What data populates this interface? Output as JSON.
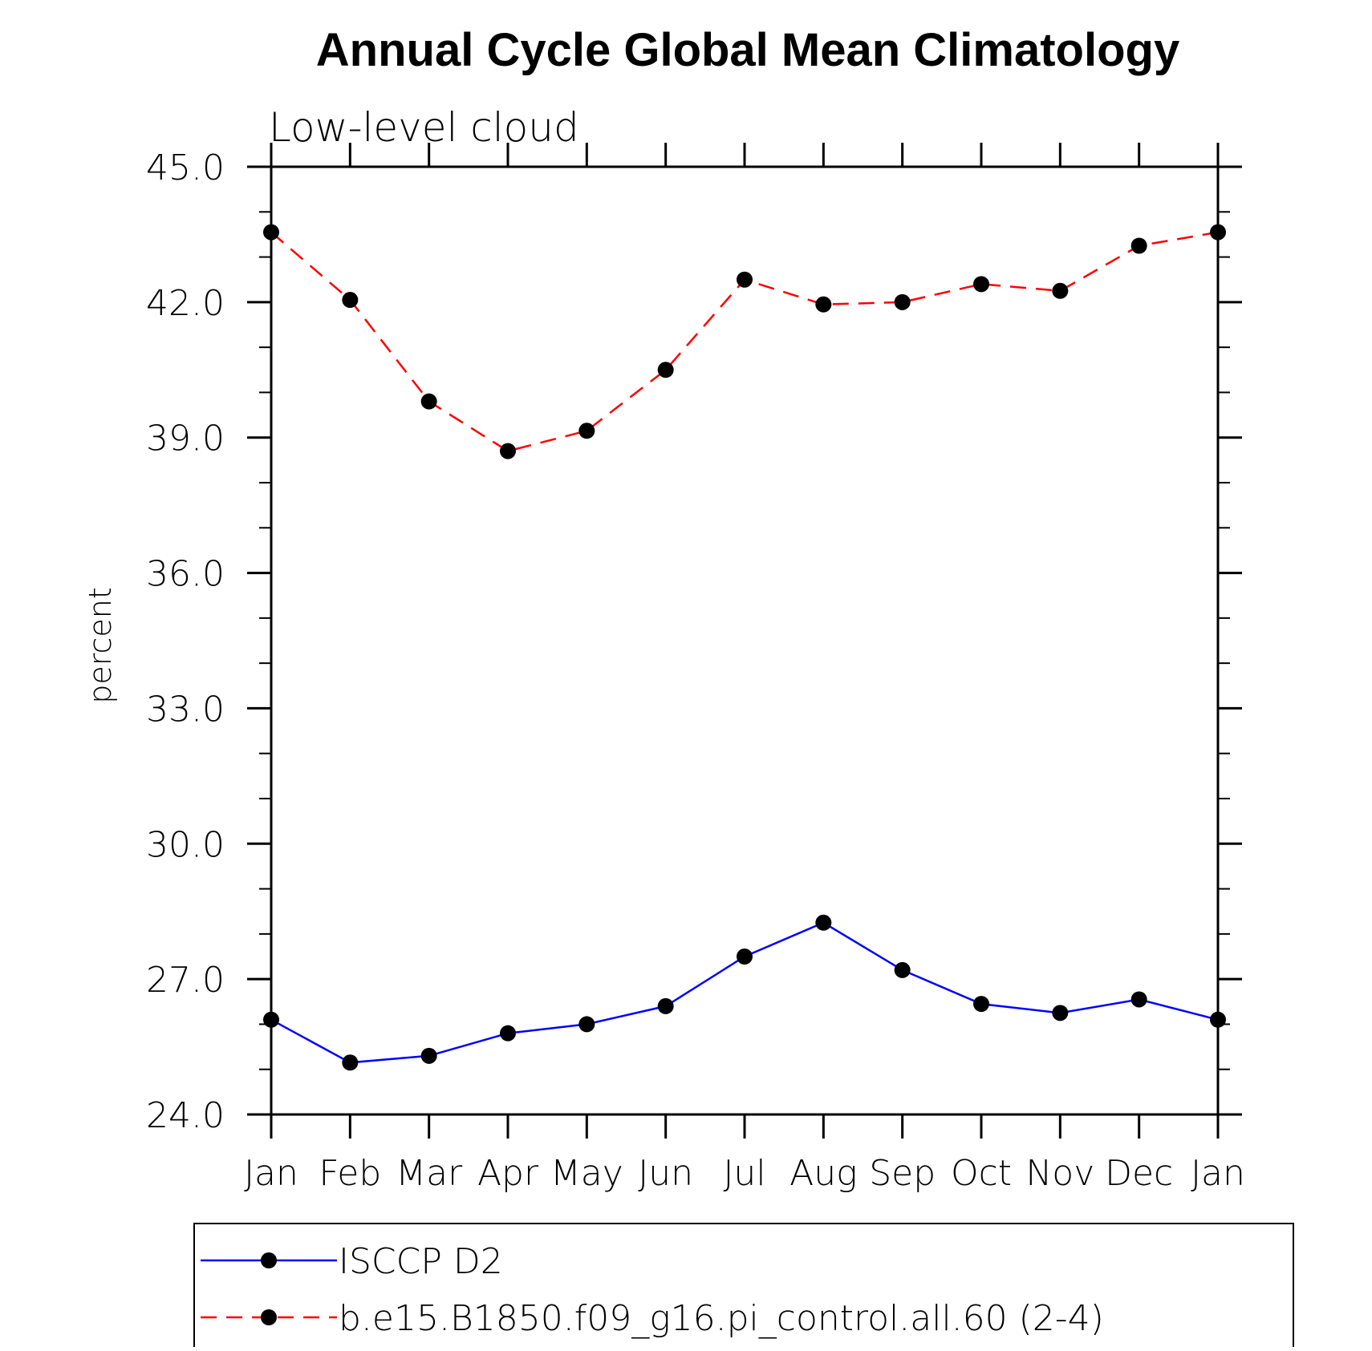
{
  "chart_data": {
    "type": "line",
    "title": "Annual Cycle Global Mean Climatology",
    "subtitle": "Low-level cloud",
    "xlabel": "",
    "ylabel": "percent",
    "categories": [
      "Jan",
      "Feb",
      "Mar",
      "Apr",
      "May",
      "Jun",
      "Jul",
      "Aug",
      "Sep",
      "Oct",
      "Nov",
      "Dec",
      "Jan"
    ],
    "ylim": [
      24.0,
      45.0
    ],
    "yticks": [
      "24.0",
      "27.0",
      "30.0",
      "33.0",
      "36.0",
      "39.0",
      "42.0",
      "45.0"
    ],
    "grid": false,
    "legend_position": "bottom",
    "series": [
      {
        "name": "ISCCP D2",
        "color": "#0000ff",
        "line_style": "solid",
        "marker": "filled-circle",
        "values": [
          26.1,
          25.15,
          25.3,
          25.8,
          26.0,
          26.4,
          27.5,
          28.25,
          27.2,
          26.45,
          26.25,
          26.55,
          26.1
        ]
      },
      {
        "name": "b.e15.B1850.f09_g16.pi_control.all.60 (2-4)",
        "color": "#ff0000",
        "line_style": "dashed",
        "marker": "filled-circle",
        "values": [
          43.55,
          42.05,
          39.8,
          38.7,
          39.15,
          40.5,
          42.5,
          41.95,
          42.0,
          42.4,
          42.25,
          43.25,
          43.55
        ]
      }
    ]
  }
}
